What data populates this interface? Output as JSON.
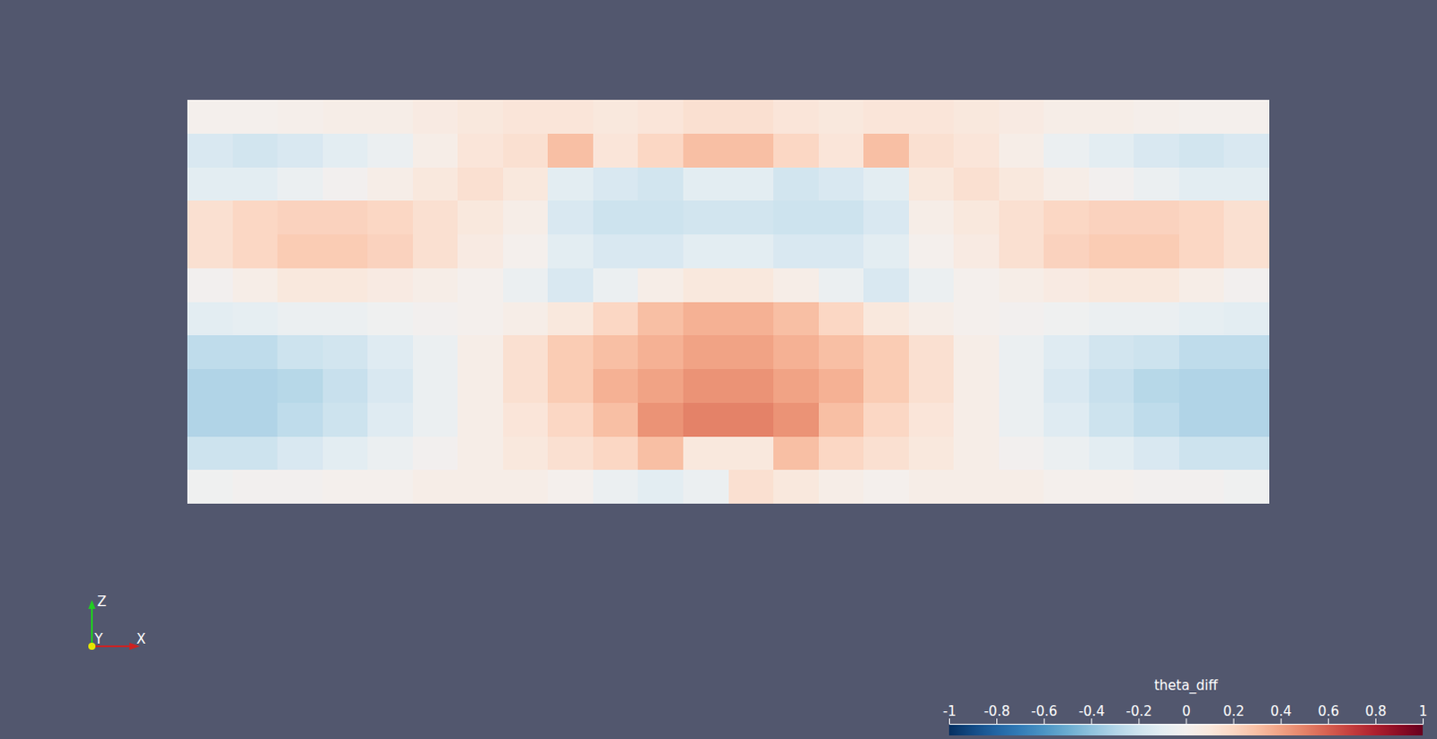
{
  "chart_data": {
    "type": "heatmap",
    "values": [
      [
        0.02,
        0.02,
        0.03,
        0.05,
        0.05,
        0.08,
        0.1,
        0.12,
        0.12,
        0.1,
        0.12,
        0.15,
        0.15,
        0.12,
        0.1,
        0.12,
        0.12,
        0.1,
        0.08,
        0.05,
        0.05,
        0.03,
        0.02,
        0.02
      ],
      [
        -0.15,
        -0.18,
        -0.15,
        -0.1,
        -0.05,
        0.05,
        0.12,
        0.15,
        0.3,
        0.12,
        0.2,
        0.3,
        0.3,
        0.2,
        0.12,
        0.3,
        0.15,
        0.12,
        0.05,
        -0.05,
        -0.1,
        -0.15,
        -0.18,
        -0.15
      ],
      [
        -0.1,
        -0.1,
        -0.05,
        0,
        0.05,
        0.1,
        0.15,
        0.1,
        -0.1,
        -0.15,
        -0.18,
        -0.1,
        -0.1,
        -0.18,
        -0.15,
        -0.1,
        0.1,
        0.15,
        0.1,
        0.05,
        0,
        -0.05,
        -0.1,
        -0.1
      ],
      [
        0.15,
        0.2,
        0.22,
        0.22,
        0.2,
        0.15,
        0.1,
        0.05,
        -0.15,
        -0.2,
        -0.2,
        -0.18,
        -0.18,
        -0.2,
        -0.2,
        -0.15,
        0.05,
        0.1,
        0.15,
        0.2,
        0.22,
        0.22,
        0.2,
        0.15
      ],
      [
        0.15,
        0.2,
        0.25,
        0.25,
        0.22,
        0.15,
        0.08,
        0.02,
        -0.1,
        -0.15,
        -0.15,
        -0.1,
        -0.1,
        -0.15,
        -0.15,
        -0.1,
        0.02,
        0.08,
        0.15,
        0.22,
        0.25,
        0.25,
        0.2,
        0.15
      ],
      [
        0,
        0.05,
        0.1,
        0.1,
        0.08,
        0.05,
        0.02,
        -0.05,
        -0.15,
        -0.05,
        0.05,
        0.1,
        0.1,
        0.05,
        -0.05,
        -0.15,
        -0.05,
        0.02,
        0.05,
        0.08,
        0.1,
        0.1,
        0.05,
        0
      ],
      [
        -0.1,
        -0.08,
        -0.05,
        -0.05,
        -0.02,
        0,
        0.02,
        0.05,
        0.1,
        0.2,
        0.3,
        0.35,
        0.35,
        0.3,
        0.2,
        0.1,
        0.05,
        0.02,
        0,
        -0.02,
        -0.05,
        -0.05,
        -0.08,
        -0.1
      ],
      [
        -0.25,
        -0.25,
        -0.2,
        -0.18,
        -0.12,
        -0.05,
        0.05,
        0.15,
        0.25,
        0.3,
        0.35,
        0.4,
        0.4,
        0.35,
        0.3,
        0.25,
        0.15,
        0.05,
        -0.05,
        -0.12,
        -0.18,
        -0.2,
        -0.25,
        -0.25
      ],
      [
        -0.3,
        -0.3,
        -0.28,
        -0.22,
        -0.15,
        -0.05,
        0.05,
        0.15,
        0.25,
        0.35,
        0.4,
        0.45,
        0.45,
        0.4,
        0.35,
        0.25,
        0.15,
        0.05,
        -0.05,
        -0.15,
        -0.22,
        -0.28,
        -0.3,
        -0.3
      ],
      [
        -0.3,
        -0.3,
        -0.25,
        -0.2,
        -0.12,
        -0.05,
        0.05,
        0.12,
        0.2,
        0.3,
        0.45,
        0.5,
        0.5,
        0.45,
        0.3,
        0.2,
        0.12,
        0.05,
        -0.05,
        -0.12,
        -0.2,
        -0.25,
        -0.3,
        -0.3
      ],
      [
        -0.2,
        -0.2,
        -0.15,
        -0.1,
        -0.05,
        0,
        0.05,
        0.1,
        0.15,
        0.2,
        0.3,
        0.1,
        0.1,
        0.3,
        0.2,
        0.15,
        0.1,
        0.05,
        0,
        -0.05,
        -0.1,
        -0.15,
        -0.2,
        -0.2
      ],
      [
        -0.02,
        0,
        0,
        0.02,
        0.02,
        0.05,
        0.05,
        0.05,
        0.02,
        -0.05,
        -0.1,
        -0.05,
        0.15,
        0.1,
        0.05,
        0.02,
        0.05,
        0.05,
        0.05,
        0.02,
        0.02,
        0,
        0,
        -0.02
      ]
    ],
    "colorbar": {
      "title": "theta_diff",
      "range": [
        -1,
        1
      ],
      "ticks": [
        -1,
        -0.8,
        -0.6,
        -0.4,
        -0.2,
        0,
        0.2,
        0.4,
        0.6,
        0.8,
        1
      ]
    },
    "triad_labels": [
      "Z",
      "Y",
      "X"
    ]
  }
}
